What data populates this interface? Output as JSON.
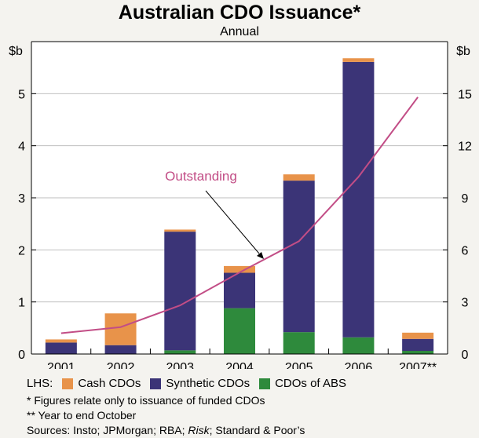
{
  "title": "Australian CDO Issuance*",
  "subtitle": "Annual",
  "left_unit": "$b",
  "right_unit": "$b",
  "legend": {
    "prefix": "LHS:",
    "items": [
      {
        "label": "Cash CDOs",
        "color": "#e8934a"
      },
      {
        "label": "Synthetic CDOs",
        "color": "#3b3477"
      },
      {
        "label": "CDOs of ABS",
        "color": "#2e8a3c"
      }
    ]
  },
  "notes": [
    "*  Figures relate only to issuance of funded CDOs",
    "** Year to end October"
  ],
  "sources_prefix": "Sources: Insto; JPMorgan; RBA; ",
  "sources_italic": "Risk",
  "sources_suffix": "; Standard & Poor’s",
  "chart_data": {
    "type": "bar",
    "stacked": true,
    "categories": [
      "2001",
      "2002",
      "2003",
      "2004",
      "2005",
      "2006",
      "2007**"
    ],
    "series": [
      {
        "name": "CDOs of ABS",
        "axis": "left",
        "color": "#2e8a3c",
        "values": [
          0.0,
          0.0,
          0.07,
          0.88,
          0.42,
          0.32,
          0.06
        ]
      },
      {
        "name": "Synthetic CDOs",
        "axis": "left",
        "color": "#3b3477",
        "values": [
          0.22,
          0.17,
          2.28,
          0.68,
          2.91,
          5.29,
          0.23
        ]
      },
      {
        "name": "Cash CDOs",
        "axis": "left",
        "color": "#e8934a",
        "values": [
          0.06,
          0.61,
          0.04,
          0.13,
          0.12,
          0.07,
          0.12
        ]
      }
    ],
    "line": {
      "name": "Outstanding",
      "axis": "right",
      "color": "#c24d86",
      "values": [
        1.2,
        1.55,
        2.8,
        4.7,
        6.5,
        10.2,
        14.8
      ]
    },
    "annotation": "Outstanding",
    "left_axis": {
      "ylim": [
        0,
        6
      ],
      "ticks": [
        0,
        1,
        2,
        3,
        4,
        5
      ]
    },
    "right_axis": {
      "ylim": [
        0,
        18
      ],
      "ticks": [
        0,
        3,
        6,
        9,
        12,
        15
      ]
    },
    "grid": true
  }
}
